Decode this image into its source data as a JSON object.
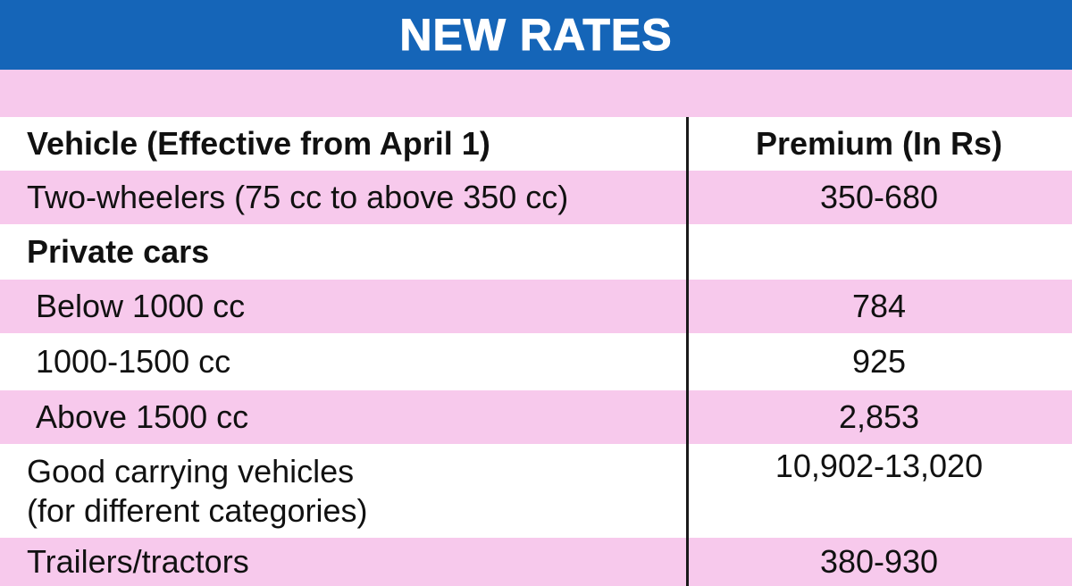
{
  "title": "NEW RATES",
  "header": {
    "vehicle": "Vehicle (Effective from April 1)",
    "premium": "Premium (In Rs)"
  },
  "rows": [
    {
      "vehicle": "Two-wheelers (75 cc to above 350 cc)",
      "premium": "350-680"
    },
    {
      "vehicle": "Private cars",
      "premium": ""
    },
    {
      "vehicle": "Below 1000 cc",
      "premium": "784"
    },
    {
      "vehicle": "1000-1500 cc",
      "premium": "925"
    },
    {
      "vehicle": "Above 1500 cc",
      "premium": "2,853"
    },
    {
      "vehicle_line1": "Good carrying vehicles",
      "vehicle_line2": "(for different categories)",
      "premium": "10,902-13,020"
    },
    {
      "vehicle": "Trailers/tractors",
      "premium": "380-930"
    }
  ],
  "colors": {
    "banner": "#1565b8",
    "row_pink": "#f7c9ec",
    "row_white": "#ffffff",
    "text": "#111111"
  }
}
